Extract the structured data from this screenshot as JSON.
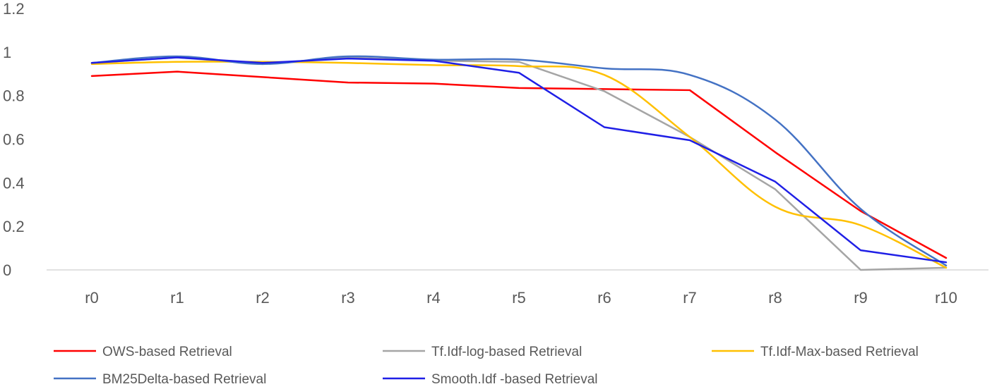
{
  "chart_data": {
    "type": "line",
    "title": "",
    "xlabel": "",
    "ylabel": "",
    "categories": [
      "r0",
      "r1",
      "r2",
      "r3",
      "r4",
      "r5",
      "r6",
      "r7",
      "r8",
      "r9",
      "r10"
    ],
    "ylim": [
      0,
      1.2
    ],
    "yticks": [
      "0",
      "0.2",
      "0.4",
      "0.6",
      "0.8",
      "1",
      "1.2"
    ],
    "grid": false,
    "legend_position": "bottom",
    "series": [
      {
        "name": "OWS-based Retrieval",
        "color": "#ff0000",
        "smooth": false,
        "values": [
          0.89,
          0.91,
          0.885,
          0.86,
          0.855,
          0.835,
          0.83,
          0.825,
          0.54,
          0.27,
          0.055
        ]
      },
      {
        "name": "Tf.Idf-log-based Retrieval",
        "color": "#a5a5a5",
        "smooth": false,
        "values": [
          0.95,
          0.975,
          0.945,
          0.975,
          0.96,
          0.955,
          0.82,
          0.61,
          0.37,
          0.0,
          0.01
        ]
      },
      {
        "name": "Tf.Idf-Max-based Retrieval",
        "color": "#ffc000",
        "smooth": true,
        "values": [
          0.945,
          0.955,
          0.955,
          0.95,
          0.94,
          0.935,
          0.895,
          0.61,
          0.29,
          0.205,
          0.01
        ]
      },
      {
        "name": "BM25Delta-based Retrieval",
        "color": "#4472c4",
        "smooth": true,
        "values": [
          0.95,
          0.98,
          0.945,
          0.98,
          0.965,
          0.965,
          0.925,
          0.895,
          0.69,
          0.28,
          0.02
        ]
      },
      {
        "name": "Smooth.Idf -based Retrieval",
        "color": "#1f1fe6",
        "smooth": false,
        "values": [
          0.95,
          0.975,
          0.95,
          0.97,
          0.96,
          0.905,
          0.655,
          0.595,
          0.405,
          0.09,
          0.035
        ]
      }
    ]
  }
}
